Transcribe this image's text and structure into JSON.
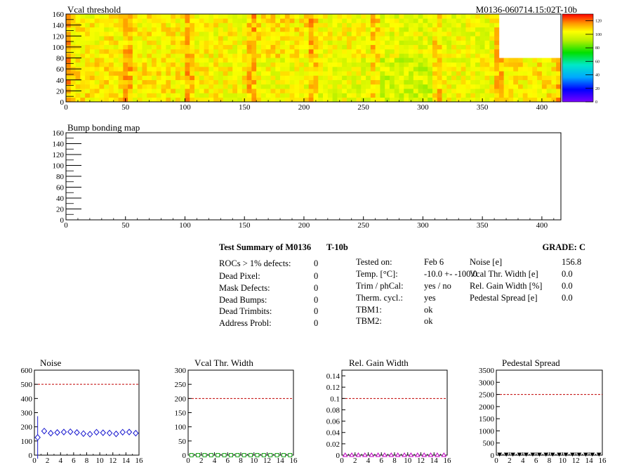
{
  "header": {
    "map_title": "Vcal threshold",
    "module_id": "M0136-060714.15:02T-10b",
    "bump_title": "Bump bonding map"
  },
  "colors": {
    "frame": "#000000",
    "limit_line": "#c00000",
    "noise_marker": "#1a1ad0",
    "vcal_marker": "#16a016",
    "gain_marker": "#c000c0",
    "ped_marker": "#000000"
  },
  "summary": {
    "title": "Test Summary of M0136",
    "temp_label": "T-10b",
    "grade": "GRADE:  C",
    "defects": [
      {
        "label": "ROCs > 1% defects:",
        "value": "0"
      },
      {
        "label": "Dead Pixel:",
        "value": "0"
      },
      {
        "label": "Mask Defects:",
        "value": "0"
      },
      {
        "label": "Dead Bumps:",
        "value": "0"
      },
      {
        "label": "Dead Trimbits:",
        "value": "0"
      },
      {
        "label": "Address Probl:",
        "value": "0"
      }
    ],
    "conditions": [
      {
        "label": "Tested on:",
        "value": "Feb 6"
      },
      {
        "label": "Temp. [°C]:",
        "value": "-10.0 +- -100.0"
      },
      {
        "label": "Trim / phCal:",
        "value": "yes / no"
      },
      {
        "label": "Therm. cycl.:",
        "value": "yes"
      },
      {
        "label": "TBM1:",
        "value": "ok"
      },
      {
        "label": "TBM2:",
        "value": "ok"
      }
    ],
    "metrics": [
      {
        "label": "Noise [e]",
        "value": "156.8"
      },
      {
        "label": "Vcal Thr. Width [e]",
        "value": "0.0"
      },
      {
        "label": "Rel. Gain Width [%]",
        "value": "0.0"
      },
      {
        "label": "Pedestal Spread [e]",
        "value": "0.0"
      }
    ]
  },
  "chart_data": [
    {
      "type": "heatmap",
      "title": "Vcal threshold",
      "xlim": [
        0,
        416
      ],
      "ylim": [
        0,
        160
      ],
      "x_ticks": [
        0,
        50,
        100,
        150,
        200,
        250,
        300,
        350,
        400
      ],
      "y_ticks": [
        0,
        20,
        40,
        60,
        80,
        100,
        120,
        140,
        160
      ],
      "colorbar_ticks": [
        0,
        20,
        40,
        60,
        80,
        100,
        120
      ],
      "colorbar_range": [
        0,
        130
      ],
      "roc_grid": {
        "cols": 8,
        "rows": 2,
        "col_width": 52,
        "row_height": 80
      },
      "roc_mean_values": [
        [
          104,
          104,
          103,
          106,
          102,
          100,
          101,
          104
        ],
        [
          106,
          105,
          104,
          102,
          100,
          96,
          102,
          105
        ]
      ],
      "empty_rocs": [
        [
          7,
          0
        ]
      ]
    },
    {
      "type": "heatmap",
      "title": "Bump bonding map",
      "xlim": [
        0,
        416
      ],
      "ylim": [
        0,
        160
      ],
      "x_ticks": [
        0,
        50,
        100,
        150,
        200,
        250,
        300,
        350,
        400
      ],
      "y_ticks": [
        0,
        20,
        40,
        60,
        80,
        100,
        120,
        140,
        160
      ]
    },
    {
      "type": "scatter",
      "title": "Noise",
      "xlim": [
        0,
        16
      ],
      "ylim": [
        0,
        600
      ],
      "x_ticks": [
        0,
        2,
        4,
        6,
        8,
        10,
        12,
        14,
        16
      ],
      "y_ticks": [
        0,
        100,
        200,
        300,
        400,
        500,
        600
      ],
      "y_tick_labels": [
        "0",
        "100",
        "200",
        "300",
        "400",
        "500",
        "600"
      ],
      "limit": 500,
      "x": [
        0.5,
        1.5,
        2.5,
        3.5,
        4.5,
        5.5,
        6.5,
        7.5,
        8.5,
        9.5,
        10.5,
        11.5,
        12.5,
        13.5,
        14.5,
        15.5
      ],
      "y": [
        125,
        170,
        155,
        160,
        163,
        165,
        160,
        152,
        148,
        162,
        158,
        156,
        150,
        162,
        163,
        155
      ],
      "yerr": [
        150,
        15,
        10,
        10,
        10,
        10,
        10,
        10,
        10,
        10,
        10,
        10,
        10,
        10,
        10,
        10
      ]
    },
    {
      "type": "scatter",
      "title": "Vcal Thr. Width",
      "xlim": [
        0,
        16
      ],
      "ylim": [
        0,
        300
      ],
      "x_ticks": [
        0,
        2,
        4,
        6,
        8,
        10,
        12,
        14,
        16
      ],
      "y_ticks": [
        0,
        50,
        100,
        150,
        200,
        250,
        300
      ],
      "y_tick_labels": [
        "0",
        "50",
        "100",
        "150",
        "200",
        "250",
        "300"
      ],
      "limit": 200,
      "x": [
        0.5,
        1.5,
        2.5,
        3.5,
        4.5,
        5.5,
        6.5,
        7.5,
        8.5,
        9.5,
        10.5,
        11.5,
        12.5,
        13.5,
        14.5,
        15.5
      ],
      "y": [
        0,
        0,
        0,
        0,
        0,
        0,
        0,
        0,
        0,
        0,
        0,
        0,
        0,
        0,
        0,
        0
      ]
    },
    {
      "type": "scatter",
      "title": "Rel. Gain Width",
      "xlim": [
        0,
        16
      ],
      "ylim": [
        0,
        0.15
      ],
      "x_ticks": [
        0,
        2,
        4,
        6,
        8,
        10,
        12,
        14,
        16
      ],
      "y_ticks": [
        0,
        0.02,
        0.04,
        0.06,
        0.08,
        0.1,
        0.12,
        0.14
      ],
      "y_tick_labels": [
        "0",
        "0.02",
        "0.04",
        "0.06",
        "0.08",
        "0.1",
        "0.12",
        "0.14"
      ],
      "limit": 0.1,
      "x": [
        0.5,
        1.5,
        2.5,
        3.5,
        4.5,
        5.5,
        6.5,
        7.5,
        8.5,
        9.5,
        10.5,
        11.5,
        12.5,
        13.5,
        14.5,
        15.5
      ],
      "y": [
        0,
        0,
        0,
        0,
        0,
        0,
        0,
        0,
        0,
        0,
        0,
        0,
        0,
        0,
        0,
        0
      ]
    },
    {
      "type": "scatter",
      "title": "Pedestal Spread",
      "xlim": [
        0,
        16
      ],
      "ylim": [
        0,
        3500
      ],
      "x_ticks": [
        0,
        2,
        4,
        6,
        8,
        10,
        12,
        14,
        16
      ],
      "y_ticks": [
        0,
        500,
        1000,
        1500,
        2000,
        2500,
        3000,
        3500
      ],
      "y_tick_labels": [
        "0",
        "500",
        "1000",
        "1500",
        "2000",
        "2500",
        "3000",
        "3500"
      ],
      "limit": 2500,
      "x": [
        0.5,
        1.5,
        2.5,
        3.5,
        4.5,
        5.5,
        6.5,
        7.5,
        8.5,
        9.5,
        10.5,
        11.5,
        12.5,
        13.5,
        14.5,
        15.5
      ],
      "y": [
        0,
        0,
        0,
        0,
        0,
        0,
        0,
        0,
        0,
        0,
        0,
        0,
        0,
        0,
        0,
        0
      ]
    }
  ]
}
